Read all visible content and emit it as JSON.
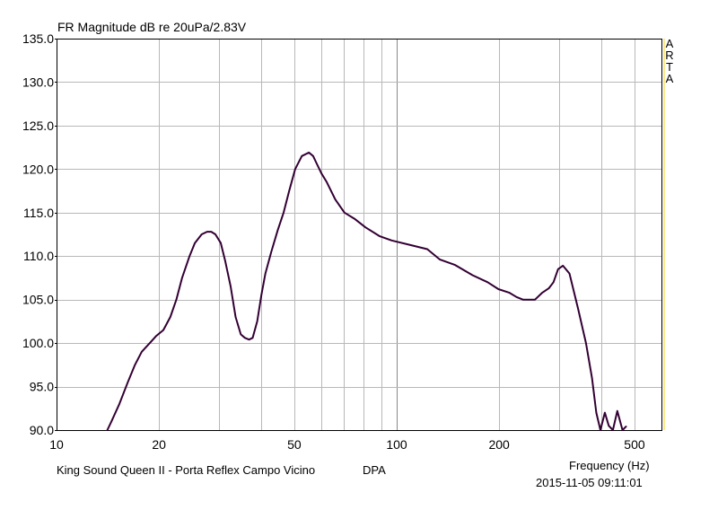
{
  "chart_data": {
    "type": "line",
    "title": "FR Magnitude dB re 20uPa/2.83V",
    "xlabel": "Frequency (Hz)",
    "ylabel": "",
    "xscale": "log",
    "xlim": [
      10,
      600
    ],
    "ylim": [
      90,
      135
    ],
    "grid": true,
    "x_ticks": [
      10,
      20,
      50,
      100,
      200,
      500
    ],
    "y_ticks": [
      "135.0",
      "130.0",
      "125.0",
      "120.0",
      "115.0",
      "110.0",
      "105.0",
      "100.0",
      "95.0",
      "90.0"
    ],
    "series": [
      {
        "color": "#330033",
        "x": [
          14.1,
          14.5,
          15.3,
          16.2,
          17.0,
          17.8,
          18.8,
          19.6,
          20.6,
          21.6,
          22.5,
          23.4,
          24.6,
          25.5,
          26.7,
          27.7,
          28.5,
          29.3,
          30.4,
          31.3,
          32.5,
          33.6,
          34.8,
          35.8,
          36.8,
          37.7,
          38.9,
          40.0,
          41.1,
          42.8,
          44.7,
          46.5,
          48.3,
          50.3,
          52.6,
          55.2,
          56.8,
          58.4,
          60.1,
          62.3,
          66.0,
          70.2,
          75.1,
          80.9,
          88.9,
          96.6,
          109,
          123,
          134,
          148,
          167,
          185,
          199,
          214,
          225,
          235,
          244,
          255,
          268,
          280,
          289,
          298,
          308,
          322,
          341,
          360,
          375,
          386,
          397,
          409,
          420,
          432,
          445,
          461,
          472
        ],
        "y": [
          90.0,
          91.0,
          93.0,
          95.5,
          97.5,
          99.0,
          100.0,
          100.8,
          101.5,
          103.0,
          105.0,
          107.5,
          110.0,
          111.5,
          112.5,
          112.8,
          112.8,
          112.5,
          111.5,
          109.5,
          106.5,
          103.0,
          101.0,
          100.6,
          100.4,
          100.6,
          102.5,
          105.5,
          108.0,
          110.5,
          113.0,
          115.0,
          117.5,
          120.0,
          121.5,
          121.9,
          121.5,
          120.5,
          119.5,
          118.5,
          116.5,
          115.0,
          114.3,
          113.3,
          112.3,
          111.8,
          111.3,
          110.8,
          109.6,
          109.0,
          107.8,
          107.0,
          106.2,
          105.8,
          105.3,
          105.0,
          105.0,
          105.0,
          105.8,
          106.3,
          107.0,
          108.5,
          108.9,
          108.0,
          104.0,
          100.0,
          96.0,
          92.0,
          89.6,
          92.0,
          90.5,
          89.6,
          92.2,
          90.0,
          90.4
        ]
      }
    ]
  },
  "brand": [
    "A",
    "R",
    "T",
    "A"
  ],
  "footer": {
    "caption": "King Sound Queen II - Porta Reflex Campo Vicino",
    "mode": "DPA",
    "timestamp": "2015-11-05  09:11:01"
  },
  "colors": {
    "line": "#330033",
    "grid": "#b8b8b8",
    "right_margin_line": "#ffe066"
  }
}
